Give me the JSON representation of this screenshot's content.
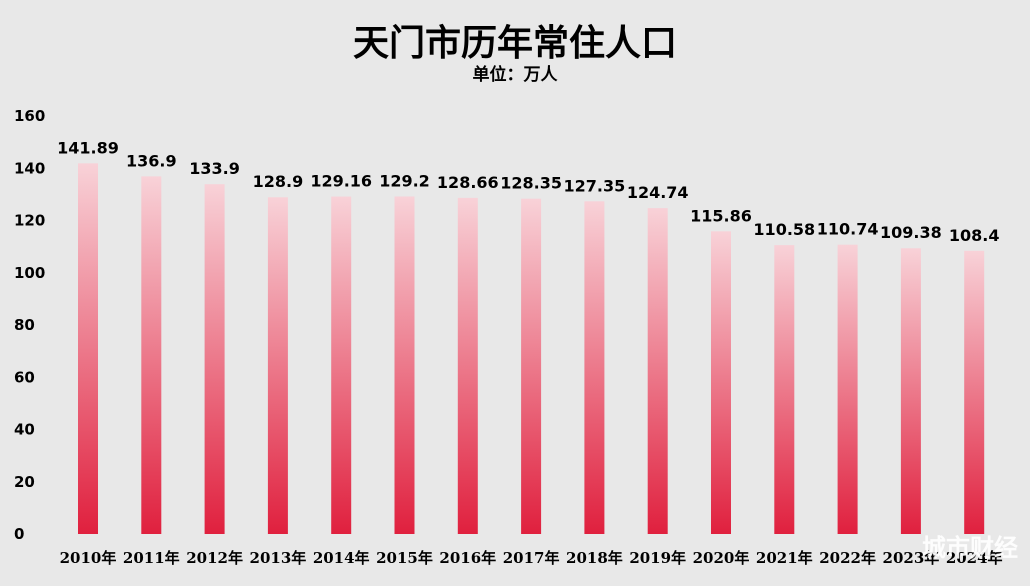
{
  "chart_data": {
    "type": "bar",
    "title": "天门市历年常住人口",
    "subtitle": "单位：万人",
    "categories": [
      "2010年",
      "2011年",
      "2012年",
      "2013年",
      "2014年",
      "2015年",
      "2016年",
      "2017年",
      "2018年",
      "2019年",
      "2020年",
      "2021年",
      "2022年",
      "2023年",
      "2024年"
    ],
    "values": [
      141.89,
      136.9,
      133.9,
      128.9,
      129.16,
      129.2,
      128.66,
      128.35,
      127.35,
      124.74,
      115.86,
      110.58,
      110.74,
      109.38,
      108.4
    ],
    "value_labels": [
      "141.89",
      "136.9",
      "133.9",
      "128.9",
      "129.16",
      "129.2",
      "128.66",
      "128.35",
      "127.35",
      "124.74",
      "115.86",
      "110.58",
      "110.74",
      "109.38",
      "108.4"
    ],
    "ylim": [
      0,
      160
    ],
    "yticks": [
      0,
      20,
      40,
      60,
      80,
      100,
      120,
      140,
      160
    ],
    "grid": false,
    "legend": "none",
    "colors": {
      "bar_top": "#f8d2d8",
      "bar_bottom": "#e0203e",
      "background": "#e8e8e8"
    }
  },
  "watermark": "城市财经"
}
